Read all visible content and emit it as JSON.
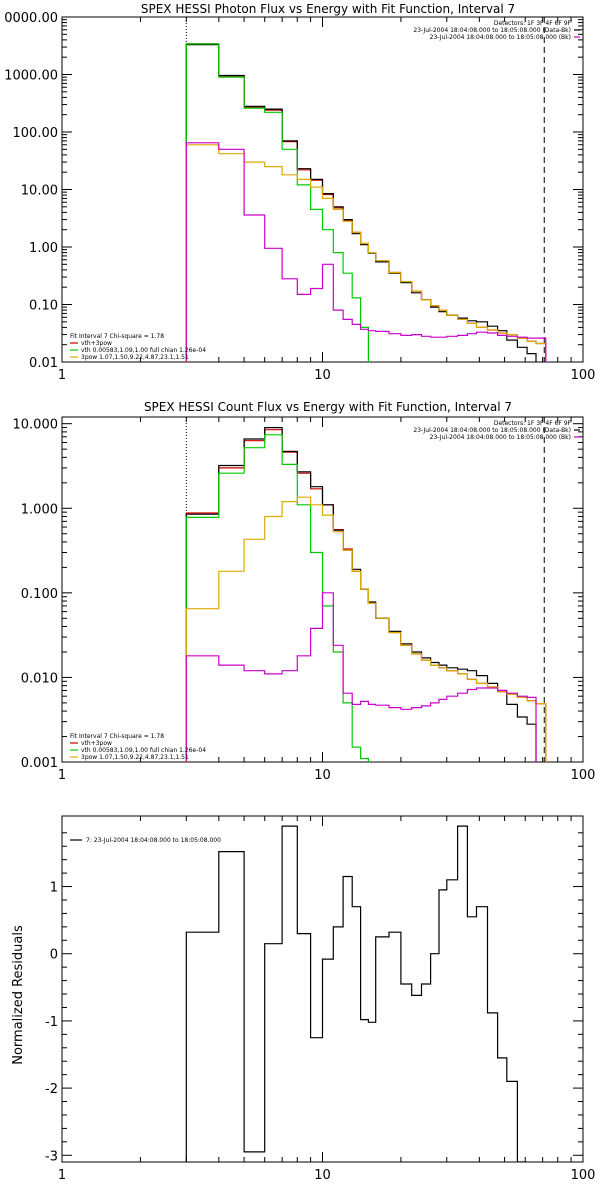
{
  "figure": {
    "panels": [
      {
        "id": "photon",
        "title": "SPEX HESSI Photon Flux vs Energy with Fit Function, Interval 7",
        "ylabel": "",
        "y_tick_labels": [
          "0.01",
          "0.10",
          "1.00",
          "10.00",
          "100.00",
          "1000.00",
          "0000.00"
        ],
        "x_tick_labels": [
          "1",
          "10",
          "100"
        ],
        "legend_right": [
          {
            "text": "Detectors: 1F 3F 4F 6F 9F",
            "color": ""
          },
          {
            "text": "23-Jul-2004 18:04:08.000 to 18:05:08.000 (Data-Bk)",
            "color": "#000000"
          },
          {
            "text": "23-Jul-2004 18:04:08.000 to 18:05:08.000 (Bk)",
            "color": "#cc00cc"
          }
        ],
        "legend_left": [
          {
            "text": "Fit Interval  7    Chi-square = 1.78",
            "color": ""
          },
          {
            "text": "vth+3pow",
            "color": "#cc0000"
          },
          {
            "text": "vth 0.00583,1.09,1.00   full chian 1.26e-04",
            "color": "#00cc00"
          },
          {
            "text": "3pow 1.07,1.50,9.22,4.87,23.1,1.51",
            "color": "#ddaa00"
          }
        ]
      },
      {
        "id": "count",
        "title": "SPEX HESSI Count Flux vs Energy with Fit Function, Interval 7",
        "ylabel": "",
        "y_tick_labels": [
          "0.001",
          "0.010",
          "0.100",
          "1.000",
          "10.000"
        ],
        "x_tick_labels": [
          "1",
          "10",
          "100"
        ],
        "legend_right": [
          {
            "text": "Detectors: 1F 3F 4F 6F 9F",
            "color": ""
          },
          {
            "text": "23-Jul-2004 18:04:08.000 to 18:05:08.000 (Data-Bk)",
            "color": "#000000"
          },
          {
            "text": "23-Jul-2004 18:04:08.000 to 18:05:08.000 (Bk)",
            "color": "#cc00cc"
          }
        ],
        "legend_left": [
          {
            "text": "Fit Interval  7    Chi-square = 1.78",
            "color": ""
          },
          {
            "text": "vth+3pow",
            "color": "#cc0000"
          },
          {
            "text": "vth 0.00583,1.09,1.00   full chian 1.26e-04",
            "color": "#00cc00"
          },
          {
            "text": "3pow 1.07,1.50,9.22,4.87,23.1,1.51",
            "color": "#ddaa00"
          }
        ]
      },
      {
        "id": "resid",
        "title": "",
        "ylabel": "Normalized Residuals",
        "y_tick_labels": [
          "-3",
          "-2",
          "-1",
          "0",
          "1",
          "2"
        ],
        "x_tick_labels": [
          "1",
          "10",
          "100"
        ],
        "legend_right": [],
        "legend_left": [
          {
            "text": "7: 23-Jul-2004 18:04:08.000 to 18:05:08.000",
            "color": "#000000"
          }
        ]
      }
    ]
  },
  "chart_data": [
    {
      "type": "line",
      "title": "SPEX HESSI Photon Flux vs Energy with Fit Function, Interval 7",
      "x_scale": "log",
      "y_scale": "log",
      "xlim": [
        1,
        100
      ],
      "ylim": [
        0.01,
        10000
      ],
      "vlines": [
        {
          "x": 3.0,
          "style": "dotted"
        },
        {
          "x": 71.0,
          "style": "dashed"
        }
      ],
      "edges": [
        3,
        4,
        5,
        6,
        7,
        8,
        9,
        10,
        11,
        12,
        13,
        14,
        15,
        16,
        18,
        20,
        22,
        24,
        26,
        28,
        30,
        33,
        36,
        39,
        43,
        47,
        51,
        56,
        61,
        66,
        72
      ],
      "series": [
        {
          "name": "vth+3pow",
          "color": "#cc0000",
          "values": [
            3400,
            950,
            270,
            240,
            68,
            22,
            14.5,
            8.2,
            4.8,
            2.9,
            1.8,
            1.15,
            0.8,
            0.58,
            0.36,
            0.25,
            0.17,
            0.12,
            0.095,
            0.08,
            0.065,
            0.055,
            0.047,
            0.04,
            0.036,
            0.032,
            0.03,
            0.026,
            0.023,
            0.021
          ]
        },
        {
          "name": "23-Jul-2004 18:04:08.000 to 18:05:08.000 (Data-Bk)",
          "color": "#000000",
          "values": [
            3300,
            960,
            280,
            250,
            70,
            23,
            15,
            8.5,
            5.0,
            3.0,
            1.7,
            1.1,
            0.78,
            0.55,
            0.35,
            0.24,
            0.16,
            0.12,
            0.09,
            0.075,
            0.065,
            0.058,
            0.052,
            0.05,
            0.042,
            0.035,
            0.024,
            0.018,
            0.014
          ]
        },
        {
          "name": "vth 0.00583,1.09,1.00   full chian 1.26e-04",
          "color": "#00cc00",
          "values": [
            3400,
            900,
            260,
            220,
            50,
            12,
            4.5,
            2.0,
            0.8,
            0.35,
            0.13,
            0.04,
            0.006
          ]
        },
        {
          "name": "3pow 1.07,1.50,9.22,4.87,23.1,1.51",
          "color": "#ddaa00",
          "values": [
            60,
            42,
            30,
            25,
            18,
            15,
            11,
            7.0,
            4.5,
            2.8,
            1.8,
            1.15,
            0.8,
            0.58,
            0.36,
            0.25,
            0.17,
            0.12,
            0.095,
            0.08,
            0.065,
            0.055,
            0.047,
            0.04,
            0.036,
            0.032,
            0.03,
            0.026,
            0.023,
            0.021
          ]
        },
        {
          "name": "23-Jul-2004 18:04:08.000 to 18:05:08.000 (Bk)",
          "color": "#cc00cc",
          "values": [
            65,
            50,
            3.6,
            0.95,
            0.28,
            0.15,
            0.19,
            0.5,
            0.08,
            0.055,
            0.045,
            0.037,
            0.035,
            0.034,
            0.031,
            0.029,
            0.03,
            0.028,
            0.027,
            0.027,
            0.028,
            0.029,
            0.031,
            0.033,
            0.032,
            0.029,
            0.028,
            0.027,
            0.026,
            0.026
          ]
        }
      ]
    },
    {
      "type": "line",
      "title": "SPEX HESSI Count Flux vs Energy with Fit Function, Interval 7",
      "x_scale": "log",
      "y_scale": "log",
      "xlim": [
        1,
        100
      ],
      "ylim": [
        0.001,
        12
      ],
      "vlines": [
        {
          "x": 3.0,
          "style": "dotted"
        },
        {
          "x": 71.0,
          "style": "dashed"
        }
      ],
      "edges": [
        3,
        4,
        5,
        6,
        7,
        8,
        9,
        10,
        11,
        12,
        13,
        14,
        15,
        16,
        18,
        20,
        22,
        24,
        26,
        28,
        30,
        33,
        36,
        39,
        43,
        47,
        51,
        56,
        61,
        66,
        72
      ],
      "series": [
        {
          "name": "vth+3pow",
          "color": "#cc0000",
          "values": [
            0.88,
            3.0,
            6.3,
            8.5,
            4.6,
            2.6,
            1.7,
            1.1,
            0.56,
            0.33,
            0.18,
            0.11,
            0.075,
            0.05,
            0.034,
            0.024,
            0.019,
            0.016,
            0.014,
            0.013,
            0.012,
            0.011,
            0.0095,
            0.0085,
            0.0077,
            0.0068,
            0.0063,
            0.0058,
            0.0053,
            0.0049
          ]
        },
        {
          "name": "23-Jul-2004 18:04:08.000 to 18:05:08.000 (Data-Bk)",
          "color": "#000000",
          "values": [
            0.85,
            3.2,
            6.6,
            9.0,
            4.7,
            2.7,
            1.8,
            1.1,
            0.55,
            0.32,
            0.19,
            0.11,
            0.078,
            0.05,
            0.035,
            0.025,
            0.02,
            0.017,
            0.015,
            0.014,
            0.013,
            0.0125,
            0.012,
            0.0105,
            0.0085,
            0.007,
            0.0048,
            0.0034,
            0.0028
          ]
        },
        {
          "name": "vth 0.00583,1.09,1.00   full chian 1.26e-04",
          "color": "#00cc00",
          "values": [
            0.78,
            2.6,
            5.2,
            7.4,
            3.3,
            1.1,
            0.3,
            0.07,
            0.02,
            0.005,
            0.0015,
            0.0011
          ]
        },
        {
          "name": "3pow 1.07,1.50,9.22,4.87,23.1,1.51",
          "color": "#ddaa00",
          "values": [
            0.065,
            0.18,
            0.43,
            0.8,
            1.2,
            1.35,
            1.1,
            0.83,
            0.53,
            0.32,
            0.18,
            0.11,
            0.075,
            0.05,
            0.034,
            0.024,
            0.019,
            0.016,
            0.014,
            0.013,
            0.012,
            0.011,
            0.0095,
            0.0085,
            0.0077,
            0.0068,
            0.0063,
            0.0058,
            0.0053,
            0.0049
          ]
        },
        {
          "name": "23-Jul-2004 18:04:08.000 to 18:05:08.000 (Bk)",
          "color": "#cc00cc",
          "values": [
            0.018,
            0.014,
            0.012,
            0.011,
            0.012,
            0.018,
            0.038,
            0.1,
            0.024,
            0.0065,
            0.0048,
            0.0052,
            0.0048,
            0.0047,
            0.0044,
            0.0042,
            0.0044,
            0.0046,
            0.005,
            0.0055,
            0.006,
            0.0065,
            0.0072,
            0.0075,
            0.0075,
            0.007,
            0.0065,
            0.006,
            0.0058,
            0.0001
          ]
        }
      ]
    },
    {
      "type": "line",
      "title": "",
      "ylabel": "Normalized Residuals",
      "x_scale": "log",
      "y_scale": "linear",
      "xlim": [
        1,
        100
      ],
      "ylim": [
        -3.1,
        2.05
      ],
      "edges": [
        3,
        4,
        5,
        6,
        7,
        8,
        9,
        10,
        11,
        12,
        13,
        14,
        15,
        16,
        18,
        20,
        22,
        24,
        26,
        28,
        30,
        33,
        36,
        39,
        43,
        47,
        51,
        56,
        61,
        66,
        72
      ],
      "series": [
        {
          "name": "7: 23-Jul-2004 18:04:08.000 to 18:05:08.000",
          "color": "#000000",
          "values": [
            0.32,
            1.52,
            -2.95,
            0.15,
            1.9,
            0.3,
            -1.25,
            -0.08,
            0.4,
            1.15,
            0.7,
            -0.98,
            -1.02,
            0.25,
            0.32,
            -0.45,
            -0.62,
            -0.45,
            0.0,
            0.95,
            1.1,
            1.9,
            0.55,
            0.7,
            -0.88,
            -1.55,
            -1.9,
            -3.1
          ]
        }
      ]
    }
  ]
}
